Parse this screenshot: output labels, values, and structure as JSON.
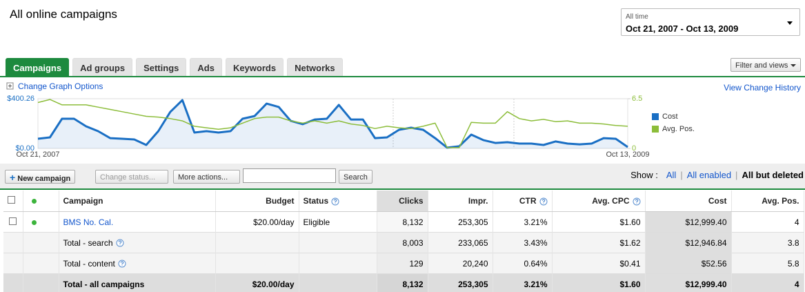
{
  "header": {
    "title": "All online campaigns"
  },
  "date_range": {
    "label": "All time",
    "value": "Oct 21, 2007 - Oct 13, 2009"
  },
  "tabs": [
    "Campaigns",
    "Ad groups",
    "Settings",
    "Ads",
    "Keywords",
    "Networks"
  ],
  "filter_button": "Filter and views",
  "graph": {
    "type": "line",
    "options_link": "Change Graph Options",
    "history_link": "View Change History",
    "categories": [
      "Oct 21, 2007",
      null,
      null,
      null,
      null,
      null,
      null,
      null,
      null,
      null,
      null,
      null,
      null,
      null,
      null,
      null,
      null,
      null,
      null,
      null,
      null,
      null,
      null,
      null,
      null,
      null,
      null,
      null,
      null,
      null,
      null,
      null,
      null,
      null,
      null,
      null,
      null,
      null,
      null,
      null,
      null,
      null,
      null,
      null,
      null,
      null,
      null,
      null,
      null,
      "Oct 13, 2009"
    ],
    "series": [
      {
        "name": "Cost",
        "color": "#1a6fc4",
        "values": [
          78,
          89,
          239,
          239,
          178,
          139,
          83,
          78,
          72,
          28,
          139,
          294,
          389,
          128,
          139,
          128,
          139,
          239,
          261,
          361,
          334,
          222,
          195,
          233,
          239,
          350,
          233,
          233,
          83,
          89,
          150,
          167,
          150,
          83,
          6,
          17,
          111,
          67,
          44,
          50,
          39,
          39,
          28,
          56,
          39,
          33,
          39,
          83,
          78,
          11
        ]
      },
      {
        "name": "Avg. Pos.",
        "color": "#8cbd3a",
        "axis": "y2",
        "values": [
          6.0,
          6.4,
          5.7,
          5.7,
          5.7,
          5.4,
          5.1,
          4.8,
          4.5,
          4.2,
          4.1,
          3.9,
          3.6,
          2.9,
          2.7,
          2.5,
          2.7,
          3.3,
          3.9,
          4.1,
          4.1,
          3.6,
          3.3,
          3.6,
          3.3,
          3.6,
          3.2,
          3.0,
          2.6,
          2.9,
          2.7,
          2.6,
          2.9,
          3.3,
          0.1,
          0.1,
          3.4,
          3.3,
          3.3,
          4.8,
          3.9,
          3.6,
          3.8,
          3.5,
          3.6,
          3.3,
          3.3,
          3.2,
          3.0,
          2.9
        ]
      }
    ],
    "ylim": [
      0,
      400.26
    ],
    "yticks": [
      {
        "value": 0,
        "label": "$0.00"
      },
      {
        "value": 400.26,
        "label": "$400.26"
      }
    ],
    "y2lim": [
      0,
      6.5
    ],
    "y2ticks": [
      0,
      6.5
    ]
  },
  "toolbar": {
    "new_campaign": "New campaign",
    "change_status": "Change status...",
    "more_actions": "More actions...",
    "search": "Search",
    "show_label": "Show :",
    "show_options": [
      "All",
      "All enabled",
      "All but deleted"
    ]
  },
  "table": {
    "columns": [
      "Campaign",
      "Budget",
      "Status",
      "Clicks",
      "Impr.",
      "CTR",
      "Avg. CPC",
      "Cost",
      "Avg. Pos."
    ],
    "rows": [
      [
        "BMS No. Cal.",
        "$20.00/day",
        "Eligible",
        "8,132",
        "253,305",
        "3.21%",
        "$1.60",
        "$12,999.40",
        "4"
      ],
      [
        "Total - search",
        null,
        null,
        "8,003",
        "233,065",
        "3.43%",
        "$1.62",
        "$12,946.84",
        "3.8"
      ],
      [
        "Total - content",
        null,
        null,
        "129",
        "20,240",
        "0.64%",
        "$0.41",
        "$52.56",
        "5.8"
      ],
      [
        "Total - all campaigns",
        "$20.00/day",
        null,
        "8,132",
        "253,305",
        "3.21%",
        "$1.60",
        "$12,999.40",
        "4"
      ]
    ]
  }
}
